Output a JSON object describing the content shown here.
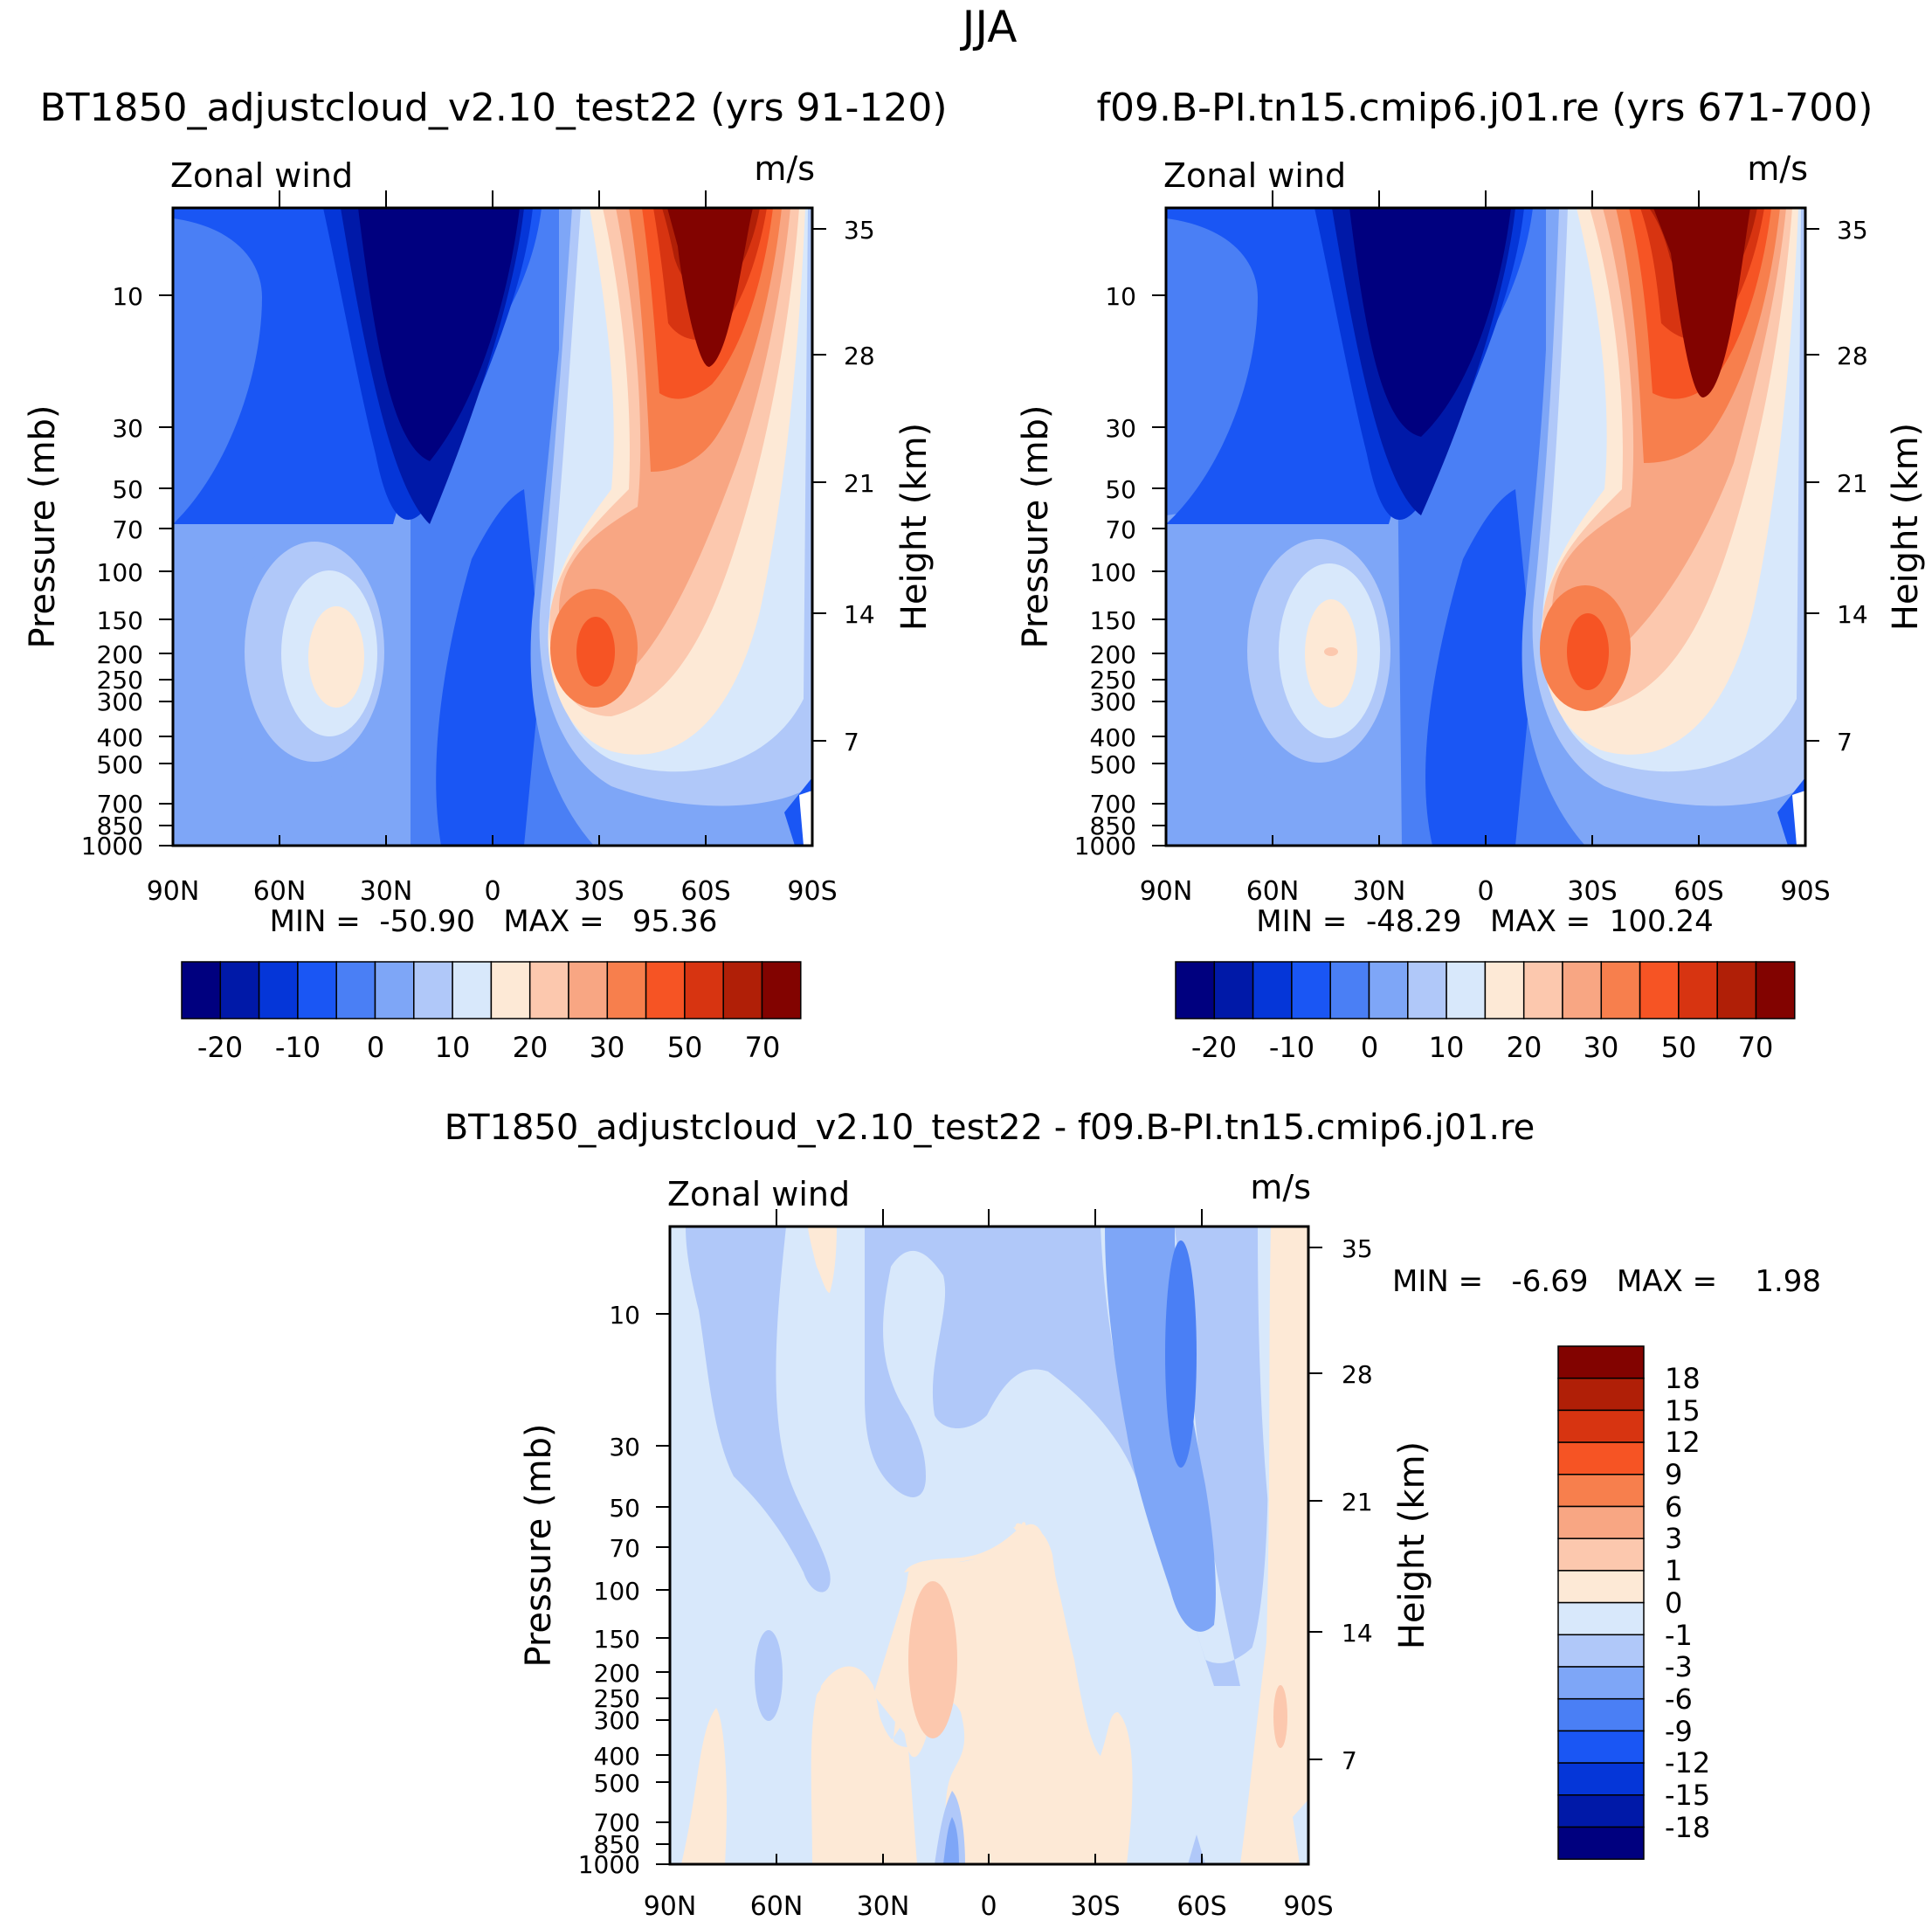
{
  "figure_title": "JJA",
  "chart_data": [
    {
      "type": "heatmap",
      "title": "BT1850_adjustcloud_v2.10_test22 (yrs 91-120)",
      "left_label": "Zonal wind",
      "right_label": "m/s",
      "ylabel": "Pressure (mb)",
      "ylabel_right": "Height (km)",
      "x_ticks": [
        "90N",
        "60N",
        "30N",
        "0",
        "30S",
        "60S",
        "90S"
      ],
      "y_ticks": [
        "10",
        "30",
        "50",
        "70",
        "100",
        "150",
        "200",
        "250",
        "300",
        "400",
        "500",
        "700",
        "850",
        "1000"
      ],
      "y_ticks_right": [
        "35",
        "28",
        "21",
        "14",
        "7"
      ],
      "ylim": [
        1000,
        5
      ],
      "stats_text": "MIN =  -50.90   MAX =   95.36",
      "min": -50.9,
      "max": 95.36,
      "colorbar_labels": [
        "-20",
        "-10",
        "0",
        "10",
        "20",
        "30",
        "50",
        "70"
      ]
    },
    {
      "type": "heatmap",
      "title": "f09.B-PI.tn15.cmip6.j01.re (yrs 671-700)",
      "left_label": "Zonal wind",
      "right_label": "m/s",
      "ylabel": "Pressure (mb)",
      "ylabel_right": "Height (km)",
      "x_ticks": [
        "90N",
        "60N",
        "30N",
        "0",
        "30S",
        "60S",
        "90S"
      ],
      "y_ticks": [
        "10",
        "30",
        "50",
        "70",
        "100",
        "150",
        "200",
        "250",
        "300",
        "400",
        "500",
        "700",
        "850",
        "1000"
      ],
      "y_ticks_right": [
        "35",
        "28",
        "21",
        "14",
        "7"
      ],
      "ylim": [
        1000,
        5
      ],
      "stats_text": "MIN =  -48.29   MAX =  100.24",
      "min": -48.29,
      "max": 100.24,
      "colorbar_labels": [
        "-20",
        "-10",
        "0",
        "10",
        "20",
        "30",
        "50",
        "70"
      ]
    },
    {
      "type": "heatmap",
      "title": "BT1850_adjustcloud_v2.10_test22 - f09.B-PI.tn15.cmip6.j01.re",
      "left_label": "Zonal wind",
      "right_label": "m/s",
      "ylabel": "Pressure (mb)",
      "ylabel_right": "Height (km)",
      "x_ticks": [
        "90N",
        "60N",
        "30N",
        "0",
        "30S",
        "60S",
        "90S"
      ],
      "y_ticks": [
        "10",
        "30",
        "50",
        "70",
        "100",
        "150",
        "200",
        "250",
        "300",
        "400",
        "500",
        "700",
        "850",
        "1000"
      ],
      "y_ticks_right": [
        "35",
        "28",
        "21",
        "14",
        "7"
      ],
      "ylim": [
        1000,
        5
      ],
      "stats_text": "MIN =   -6.69   MAX =    1.98",
      "min": -6.69,
      "max": 1.98,
      "colorbar_labels": [
        "18",
        "15",
        "12",
        "9",
        "6",
        "3",
        "1",
        "0",
        "-1",
        "-3",
        "-6",
        "-9",
        "-12",
        "-15",
        "-18"
      ]
    }
  ],
  "palette_main": [
    "#00007f",
    "#0019a8",
    "#0536d8",
    "#1a56f4",
    "#4a7ff5",
    "#7ea6f7",
    "#b0c8f9",
    "#d8e8fb",
    "#fde9d6",
    "#fcc8ae",
    "#f8a683",
    "#f77f4d",
    "#f65424",
    "#d73411",
    "#b01f07",
    "#820300"
  ],
  "palette_diff": [
    "#820300",
    "#b01f07",
    "#d73411",
    "#f65424",
    "#f77f4d",
    "#f8a683",
    "#fcc8ae",
    "#fde9d6",
    "#d8e8fb",
    "#b0c8f9",
    "#7ea6f7",
    "#4a7ff5",
    "#1a56f4",
    "#0536d8",
    "#0019a8",
    "#00007f"
  ]
}
